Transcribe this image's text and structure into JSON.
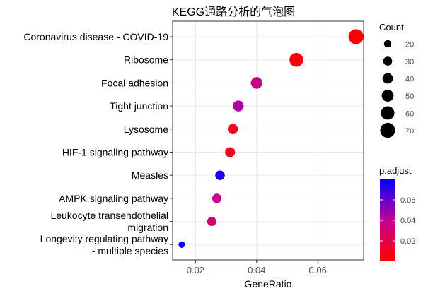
{
  "chart_data": {
    "type": "scatter",
    "title": "KEGG通路分析的气泡图",
    "xlabel": "GeneRatio",
    "ylabel": "",
    "xlim": [
      0.0125,
      0.075
    ],
    "x_ticks": [
      "0.02",
      "0.04",
      "0.06"
    ],
    "x_tick_values": [
      0.02,
      0.04,
      0.06
    ],
    "grid": true,
    "legend_position": "right",
    "categories": [
      "Coronavirus disease - COVID-19",
      "Ribosome",
      "Focal adhesion",
      "Tight junction",
      "Lysosome",
      "HIF-1 signaling pathway",
      "Measles",
      "AMPK signaling pathway",
      "Leukocyte transendothelial\nmigration",
      "Longevity regulating pathway\n- multiple species"
    ],
    "points": [
      {
        "term": "Coronavirus disease - COVID-19",
        "gene_ratio": 0.0725,
        "count": 70,
        "p_adjust": 0.0
      },
      {
        "term": "Ribosome",
        "gene_ratio": 0.053,
        "count": 62,
        "p_adjust": 0.002
      },
      {
        "term": "Focal adhesion",
        "gene_ratio": 0.04,
        "count": 48,
        "p_adjust": 0.036
      },
      {
        "term": "Tight junction",
        "gene_ratio": 0.034,
        "count": 43,
        "p_adjust": 0.045
      },
      {
        "term": "Lysosome",
        "gene_ratio": 0.0322,
        "count": 38,
        "p_adjust": 0.007
      },
      {
        "term": "HIF-1 signaling pathway",
        "gene_ratio": 0.0313,
        "count": 37,
        "p_adjust": 0.008
      },
      {
        "term": "Measles",
        "gene_ratio": 0.028,
        "count": 34,
        "p_adjust": 0.075
      },
      {
        "term": "AMPK signaling pathway",
        "gene_ratio": 0.027,
        "count": 33,
        "p_adjust": 0.038
      },
      {
        "term": "Leukocyte transendothelial\nmigration",
        "gene_ratio": 0.0253,
        "count": 31,
        "p_adjust": 0.03
      },
      {
        "term": "Longevity regulating pathway\n- multiple species",
        "gene_ratio": 0.0155,
        "count": 14,
        "p_adjust": 0.08
      }
    ],
    "size_legend": {
      "title": "Count",
      "values": [
        20,
        30,
        40,
        50,
        60,
        70
      ],
      "labels": [
        "20",
        "30",
        "40",
        "50",
        "60",
        "70"
      ]
    },
    "color_legend": {
      "title": "p.adjust",
      "min": 0.0,
      "max": 0.08,
      "ticks": [
        0.02,
        0.04,
        0.06
      ],
      "labels": [
        "0.02",
        "0.04",
        "0.06"
      ],
      "low_color": "#ff0000",
      "high_color": "#0000ff"
    },
    "colors": {
      "panel_background": "#ffffff",
      "grid": "#ebebeb",
      "border": "#333333",
      "text": "#000000",
      "axis_text": "#4d4d4d"
    }
  }
}
